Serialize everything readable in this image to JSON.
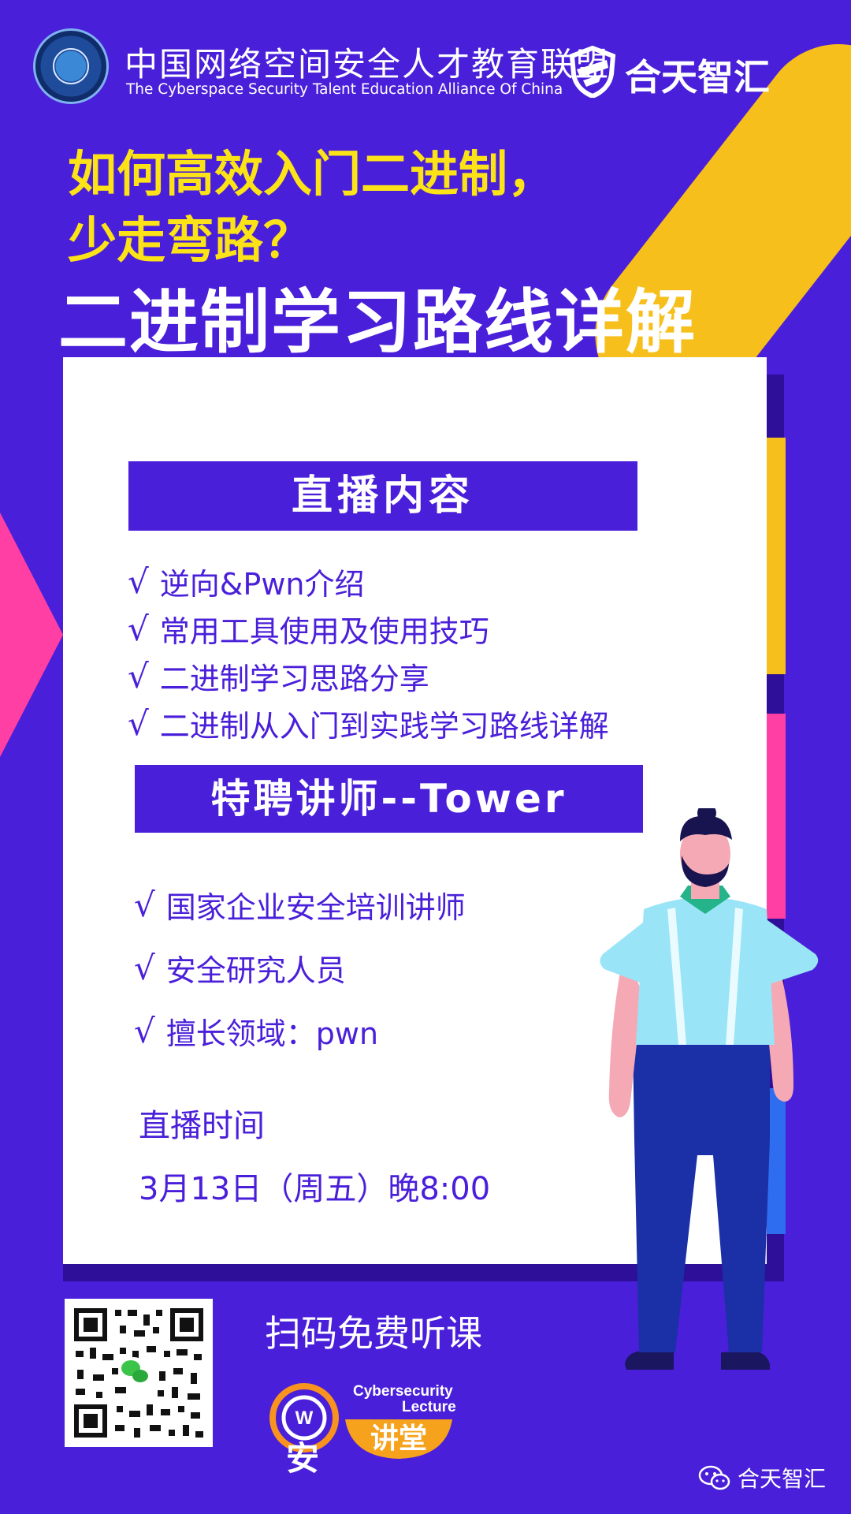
{
  "header": {
    "alliance_cn": "中国网络空间安全人才教育联盟",
    "alliance_en": "The Cyberspace Security Talent Education Alliance Of China",
    "brand": "合天智汇"
  },
  "titles": {
    "line1": "如何高效入门二进制，",
    "line2": "少走弯路？",
    "main": "二进制学习路线详解"
  },
  "check_mark": "√",
  "live_content": {
    "heading": "直播内容",
    "items": [
      "逆向&Pwn介绍",
      "常用工具使用及使用技巧",
      "二进制学习思路分享",
      "二进制从入门到实践学习路线详解"
    ]
  },
  "lecturer": {
    "heading": "特聘讲师--Tower",
    "items": [
      "国家企业安全培训讲师",
      "安全研究人员",
      "擅长领域：pwn"
    ]
  },
  "schedule": {
    "label": "直播时间",
    "value": "3月13日（周五）晚8:00"
  },
  "footer": {
    "scan": "扫码免费听课",
    "lecture_en1": "Cybersecurity",
    "lecture_en2": "Lecture",
    "lecture_an": "安",
    "lecture_jiangtang": "讲堂",
    "wechat_account": "合天智汇"
  },
  "colors": {
    "background": "#4a1fd9",
    "yellow": "#f7bf1b",
    "title_yellow": "#fbe318",
    "pink": "#ff3fa4",
    "card": "#ffffff"
  },
  "icons": [
    "alliance-logo-icon",
    "brand-shield-icon",
    "check-icon",
    "qr-code",
    "wechat-icon",
    "lecture-logo-icon",
    "person-illustration"
  ]
}
